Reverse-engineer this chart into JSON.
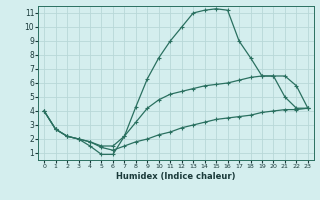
{
  "xlabel": "Humidex (Indice chaleur)",
  "xlim": [
    -0.5,
    23.5
  ],
  "ylim": [
    0.5,
    11.5
  ],
  "xticks": [
    0,
    1,
    2,
    3,
    4,
    5,
    6,
    7,
    8,
    9,
    10,
    11,
    12,
    13,
    14,
    15,
    16,
    17,
    18,
    19,
    20,
    21,
    22,
    23
  ],
  "yticks": [
    1,
    2,
    3,
    4,
    5,
    6,
    7,
    8,
    9,
    10,
    11
  ],
  "bg_color": "#d4eeee",
  "grid_color": "#b8d8d8",
  "line_color": "#2a7060",
  "line1_x": [
    0,
    1,
    2,
    3,
    4,
    5,
    6,
    7,
    8,
    9,
    10,
    11,
    12,
    13,
    14,
    15,
    16,
    17,
    18,
    19,
    20,
    21,
    22,
    23
  ],
  "line1_y": [
    4.0,
    2.7,
    2.2,
    2.0,
    1.5,
    0.9,
    0.9,
    2.2,
    4.3,
    6.3,
    7.8,
    9.0,
    10.0,
    11.0,
    11.2,
    11.3,
    11.2,
    9.0,
    7.8,
    6.5,
    6.5,
    5.0,
    4.2,
    4.2
  ],
  "line2_x": [
    0,
    1,
    2,
    3,
    4,
    5,
    6,
    7,
    8,
    9,
    10,
    11,
    12,
    13,
    14,
    15,
    16,
    17,
    18,
    19,
    20,
    21,
    22,
    23
  ],
  "line2_y": [
    4.0,
    2.7,
    2.2,
    2.0,
    1.8,
    1.5,
    1.5,
    2.2,
    3.2,
    4.2,
    4.8,
    5.2,
    5.4,
    5.6,
    5.8,
    5.9,
    6.0,
    6.2,
    6.4,
    6.5,
    6.5,
    6.5,
    5.8,
    4.2
  ],
  "line3_x": [
    0,
    1,
    2,
    3,
    4,
    5,
    6,
    7,
    8,
    9,
    10,
    11,
    12,
    13,
    14,
    15,
    16,
    17,
    18,
    19,
    20,
    21,
    22,
    23
  ],
  "line3_y": [
    4.0,
    2.7,
    2.2,
    2.0,
    1.8,
    1.4,
    1.2,
    1.5,
    1.8,
    2.0,
    2.3,
    2.5,
    2.8,
    3.0,
    3.2,
    3.4,
    3.5,
    3.6,
    3.7,
    3.9,
    4.0,
    4.1,
    4.1,
    4.2
  ]
}
